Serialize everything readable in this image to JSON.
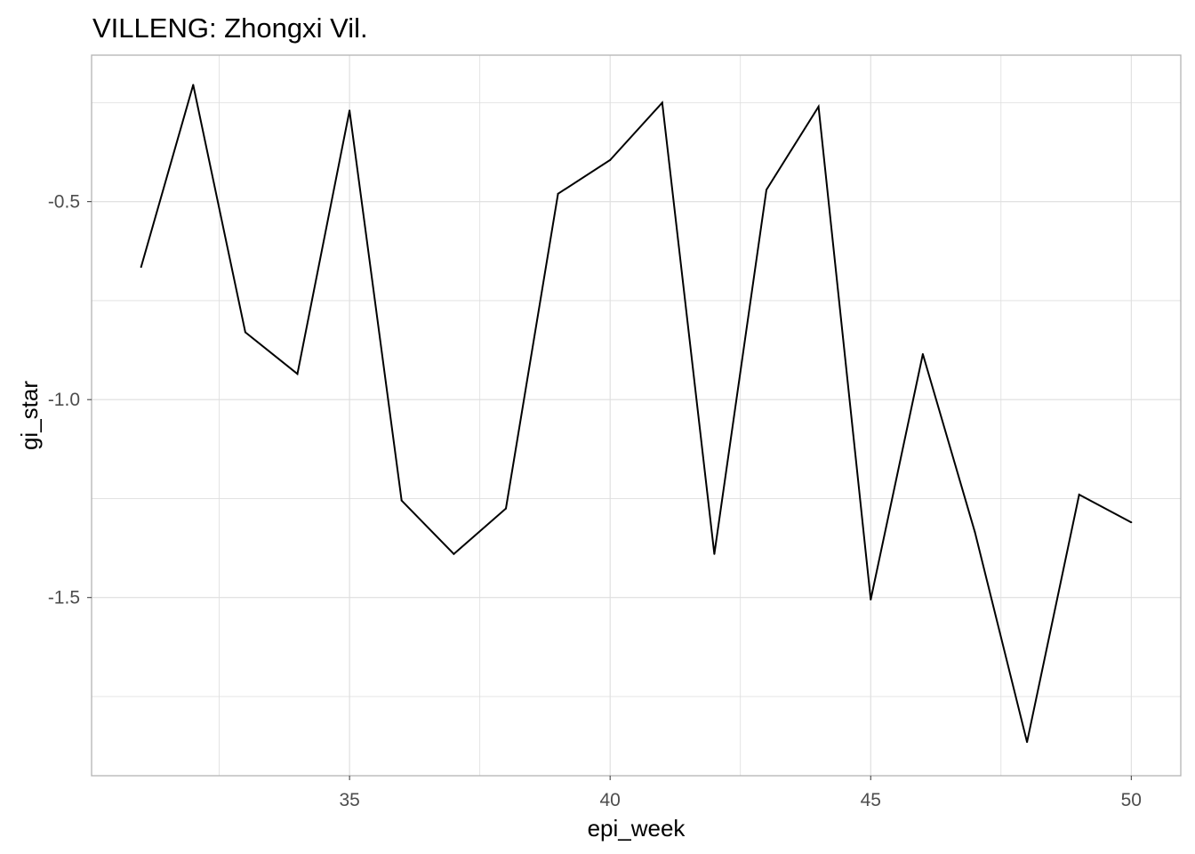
{
  "chart_data": {
    "type": "line",
    "title": "VILLENG: Zhongxi Vil.",
    "xlabel": "epi_week",
    "ylabel": "gi_star",
    "xlim": [
      30.05,
      50.95
    ],
    "ylim": [
      -1.95,
      -0.13
    ],
    "x_ticks": [
      35,
      40,
      45,
      50
    ],
    "x_tick_labels": [
      "35",
      "40",
      "45",
      "50"
    ],
    "x_minor_ticks": [
      32.5,
      37.5,
      42.5,
      47.5
    ],
    "y_ticks": [
      -1.5,
      -1.0,
      -0.5
    ],
    "y_tick_labels": [
      "-1.5",
      "-1.0",
      "-0.5"
    ],
    "y_minor_ticks": [
      -1.75,
      -1.25,
      -0.75,
      -0.25
    ],
    "grid": true,
    "line_color": "#000000",
    "grid_color": "#dedede",
    "panel_border_color": "#b3b3b3",
    "series": [
      {
        "x": [
          31,
          32,
          33,
          34,
          35,
          36,
          37,
          38,
          39,
          40,
          41,
          42,
          43,
          44,
          45,
          46,
          47,
          48,
          49,
          50
        ],
        "y": [
          -0.665,
          -0.205,
          -0.83,
          -0.935,
          -0.27,
          -1.255,
          -1.39,
          -1.275,
          -0.48,
          -0.395,
          -0.25,
          -1.39,
          -0.47,
          -0.26,
          -1.505,
          -0.885,
          -1.335,
          -1.865,
          -1.24,
          -1.31
        ]
      }
    ]
  }
}
